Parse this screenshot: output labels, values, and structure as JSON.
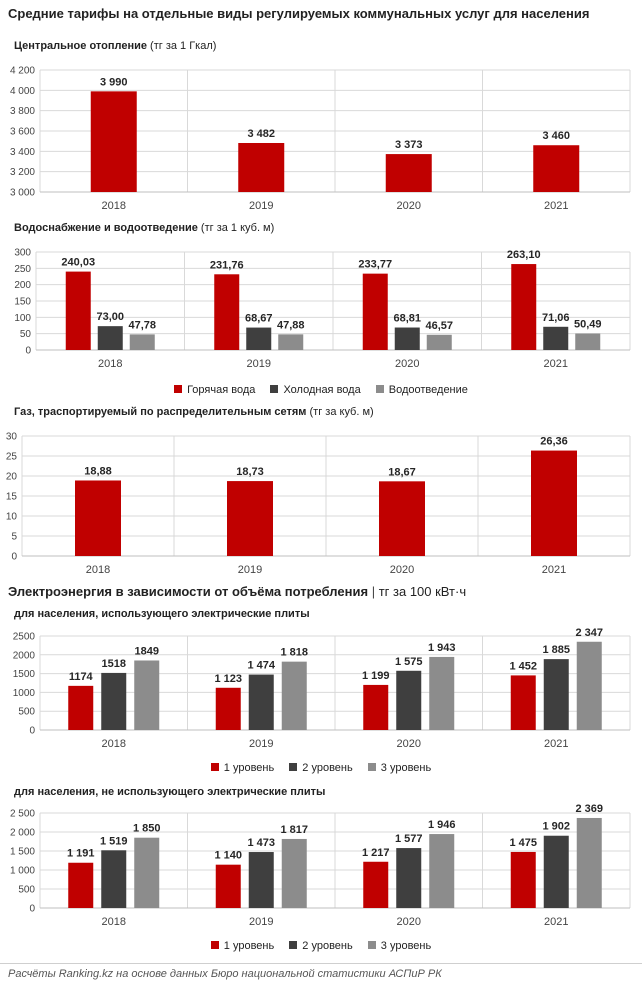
{
  "title": "Средние тарифы на отдельные виды регулируемых коммунальных услуг для населения",
  "electricity_heading": {
    "main": "Электроэнергия в зависимости от объёма потребления",
    "separator": "|",
    "unit": "тг за 100 кВт·ч"
  },
  "footer": "Расчёты Ranking.kz на основе данных Бюро национальной статистики АСПиР РК",
  "colors": {
    "red": "#c00000",
    "dark": "#3f3f3f",
    "grey": "#8c8c8c",
    "grid": "#d9d9d9"
  },
  "chart_data": [
    {
      "id": "heating",
      "type": "bar",
      "title": "Центральное отопление",
      "unit_label": "(тг за 1 Гкал)",
      "categories": [
        "2018",
        "2019",
        "2020",
        "2021"
      ],
      "series": [
        {
          "values": [
            3990,
            3482,
            3373,
            3460
          ],
          "labels": [
            "3 990",
            "3 482",
            "3 373",
            "3 460"
          ]
        }
      ],
      "ylim": [
        3000,
        4200
      ],
      "yticks": [
        3000,
        3200,
        3400,
        3600,
        3800,
        4000,
        4200
      ],
      "ytick_labels": [
        "3 000",
        "3 200",
        "3 400",
        "3 600",
        "3 800",
        "4 000",
        "4 200"
      ],
      "grid": true
    },
    {
      "id": "water",
      "type": "bar",
      "title": "Водоснабжение и водоотведение",
      "unit_label": "(тг за 1 куб. м)",
      "categories": [
        "2018",
        "2019",
        "2020",
        "2021"
      ],
      "series": [
        {
          "name": "Горячая вода",
          "values": [
            240.03,
            231.76,
            233.77,
            263.1
          ],
          "labels": [
            "240,03",
            "231,76",
            "233,77",
            "263,10"
          ]
        },
        {
          "name": "Холодная вода",
          "values": [
            73.0,
            68.67,
            68.81,
            71.06
          ],
          "labels": [
            "73,00",
            "68,67",
            "68,81",
            "71,06"
          ]
        },
        {
          "name": "Водоотведение",
          "values": [
            47.78,
            47.88,
            46.57,
            50.49
          ],
          "labels": [
            "47,78",
            "47,88",
            "46,57",
            "50,49"
          ]
        }
      ],
      "ylim": [
        0,
        300
      ],
      "yticks": [
        0,
        50,
        100,
        150,
        200,
        250,
        300
      ],
      "ytick_labels": [
        "0",
        "50",
        "100",
        "150",
        "200",
        "250",
        "300"
      ],
      "legend": "bottom",
      "grid": true
    },
    {
      "id": "gas",
      "type": "bar",
      "title": "Газ, траспортируемый по распределительным сетям",
      "unit_label": "(тг за куб. м)",
      "categories": [
        "2018",
        "2019",
        "2020",
        "2021"
      ],
      "series": [
        {
          "values": [
            18.88,
            18.73,
            18.67,
            26.36
          ],
          "labels": [
            "18,88",
            "18,73",
            "18,67",
            "26,36"
          ]
        }
      ],
      "ylim": [
        0,
        30
      ],
      "yticks": [
        0,
        5,
        10,
        15,
        20,
        25,
        30
      ],
      "ytick_labels": [
        "0",
        "5",
        "10",
        "15",
        "20",
        "25",
        "30"
      ],
      "grid": true
    },
    {
      "id": "elec-stoves",
      "type": "bar",
      "title": "для населения, использующего электрические плиты",
      "unit_label": "",
      "categories": [
        "2018",
        "2019",
        "2020",
        "2021"
      ],
      "series": [
        {
          "name": "1 уровень",
          "values": [
            1174,
            1123,
            1199,
            1452
          ],
          "labels": [
            "1174",
            "1 123",
            "1 199",
            "1 452"
          ]
        },
        {
          "name": "2 уровень",
          "values": [
            1518,
            1474,
            1575,
            1885
          ],
          "labels": [
            "1518",
            "1 474",
            "1 575",
            "1 885"
          ]
        },
        {
          "name": "3 уровень",
          "values": [
            1849,
            1818,
            1943,
            2347
          ],
          "labels": [
            "1849",
            "1 818",
            "1 943",
            "2 347"
          ]
        }
      ],
      "ylim": [
        0,
        2500
      ],
      "yticks": [
        0,
        500,
        1000,
        1500,
        2000,
        2500
      ],
      "ytick_labels": [
        "0",
        "500",
        "1000",
        "1500",
        "2000",
        "2500"
      ],
      "legend": "bottom",
      "grid": true
    },
    {
      "id": "elec-nostoves",
      "type": "bar",
      "title": "для населения, не использующего электрические плиты",
      "unit_label": "",
      "categories": [
        "2018",
        "2019",
        "2020",
        "2021"
      ],
      "series": [
        {
          "name": "1 уровень",
          "values": [
            1191,
            1140,
            1217,
            1475
          ],
          "labels": [
            "1 191",
            "1 140",
            "1 217",
            "1 475"
          ]
        },
        {
          "name": "2 уровень",
          "values": [
            1519,
            1473,
            1577,
            1902
          ],
          "labels": [
            "1 519",
            "1 473",
            "1 577",
            "1 902"
          ]
        },
        {
          "name": "3 уровень",
          "values": [
            1850,
            1817,
            1946,
            2369
          ],
          "labels": [
            "1 850",
            "1 817",
            "1 946",
            "2 369"
          ]
        }
      ],
      "ylim": [
        0,
        2500
      ],
      "yticks": [
        0,
        500,
        1000,
        1500,
        2000,
        2500
      ],
      "ytick_labels": [
        "0",
        "500",
        "1 000",
        "1 500",
        "2 000",
        "2 500"
      ],
      "legend": "bottom",
      "grid": true
    }
  ]
}
